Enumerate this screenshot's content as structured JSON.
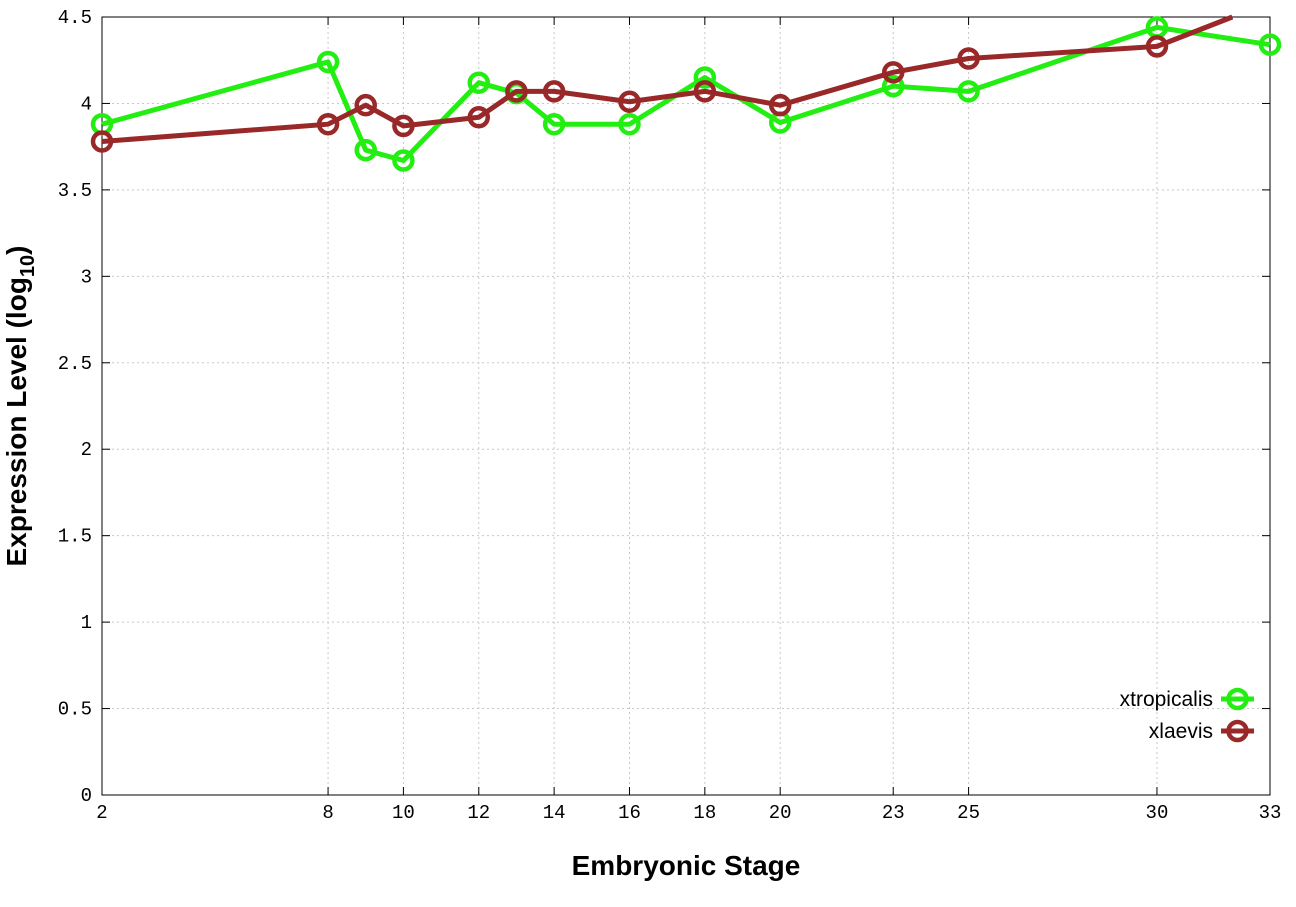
{
  "chart_data": {
    "type": "line",
    "title": "",
    "xlabel": "Embryonic Stage",
    "ylabel_main": "Expression Level (log",
    "ylabel_sub": "10",
    "ylabel_close": ")",
    "xlim": [
      2,
      33
    ],
    "ylim": [
      0,
      4.5
    ],
    "x_ticks": [
      {
        "value": 2,
        "label": "2"
      },
      {
        "value": 8,
        "label": "8"
      },
      {
        "value": 10,
        "label": "10"
      },
      {
        "value": 12,
        "label": "12"
      },
      {
        "value": 14,
        "label": "14"
      },
      {
        "value": 16,
        "label": "16"
      },
      {
        "value": 18,
        "label": "18"
      },
      {
        "value": 20,
        "label": "20"
      },
      {
        "value": 23,
        "label": "23"
      },
      {
        "value": 25,
        "label": "25"
      },
      {
        "value": 30,
        "label": "30"
      },
      {
        "value": 33,
        "label": "33"
      }
    ],
    "y_ticks": [
      {
        "value": 0,
        "label": "0"
      },
      {
        "value": 0.5,
        "label": "0.5"
      },
      {
        "value": 1,
        "label": "1"
      },
      {
        "value": 1.5,
        "label": "1.5"
      },
      {
        "value": 2,
        "label": "2"
      },
      {
        "value": 2.5,
        "label": "2.5"
      },
      {
        "value": 3,
        "label": "3"
      },
      {
        "value": 3.5,
        "label": "3.5"
      },
      {
        "value": 4,
        "label": "4"
      },
      {
        "value": 4.5,
        "label": "4.5"
      }
    ],
    "grid": true,
    "legend_position": "bottom-right",
    "series": [
      {
        "name": "xtropicalis",
        "color": "#22ee11",
        "marker": "circle",
        "points": [
          {
            "x": 2,
            "y": 3.88
          },
          {
            "x": 8,
            "y": 4.24
          },
          {
            "x": 9,
            "y": 3.73
          },
          {
            "x": 10,
            "y": 3.67
          },
          {
            "x": 12,
            "y": 4.12
          },
          {
            "x": 13,
            "y": 4.06
          },
          {
            "x": 14,
            "y": 3.88
          },
          {
            "x": 16,
            "y": 3.88
          },
          {
            "x": 18,
            "y": 4.15
          },
          {
            "x": 20,
            "y": 3.89
          },
          {
            "x": 23,
            "y": 4.1
          },
          {
            "x": 25,
            "y": 4.07
          },
          {
            "x": 30,
            "y": 4.44
          },
          {
            "x": 33,
            "y": 4.34
          }
        ]
      },
      {
        "name": "xlaevis",
        "color": "#992828",
        "marker": "circle",
        "points": [
          {
            "x": 2,
            "y": 3.78
          },
          {
            "x": 8,
            "y": 3.88
          },
          {
            "x": 9,
            "y": 3.99
          },
          {
            "x": 10,
            "y": 3.87
          },
          {
            "x": 12,
            "y": 3.92
          },
          {
            "x": 13,
            "y": 4.07
          },
          {
            "x": 14,
            "y": 4.07
          },
          {
            "x": 16,
            "y": 4.01
          },
          {
            "x": 18,
            "y": 4.07
          },
          {
            "x": 20,
            "y": 3.99
          },
          {
            "x": 23,
            "y": 4.18
          },
          {
            "x": 25,
            "y": 4.26
          },
          {
            "x": 30,
            "y": 4.33
          }
        ],
        "line_extends_to": {
          "x": 32,
          "y": 4.5
        }
      }
    ]
  }
}
